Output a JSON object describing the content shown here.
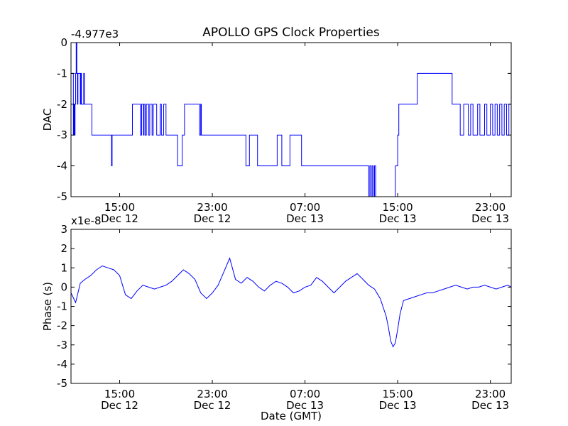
{
  "figure": {
    "title": "APOLLO GPS Clock Properties",
    "xlabel": "Date (GMT)"
  },
  "chart_data": [
    {
      "type": "line",
      "ylabel": "DAC",
      "offset_label": "-4.977e3",
      "x_unit": "hours",
      "xlim": [
        10.8,
        48.8
      ],
      "ylim": [
        -5,
        0
      ],
      "yticks": [
        0,
        -1,
        -2,
        -3,
        -4,
        -5
      ],
      "ytick_labels": [
        "0",
        "-1",
        "-2",
        "-3",
        "-4",
        "-5"
      ],
      "xticks": [
        15,
        23,
        31,
        39,
        47
      ],
      "xtick_labels": [
        [
          "15:00",
          "Dec 12"
        ],
        [
          "23:00",
          "Dec 12"
        ],
        [
          "07:00",
          "Dec 13"
        ],
        [
          "15:00",
          "Dec 13"
        ],
        [
          "23:00",
          "Dec 13"
        ]
      ],
      "color": "#0000ff",
      "step": true,
      "series": [
        {
          "x": [
            10.8,
            11.0,
            11.05,
            11.1,
            11.15,
            11.2,
            11.25,
            11.3,
            11.35,
            11.4,
            11.6,
            11.65,
            11.7,
            11.72,
            11.9,
            11.95,
            12.0,
            12.05,
            12.1,
            12.15,
            12.2,
            12.3,
            12.35,
            12.6,
            12.65,
            12.9,
            14.3,
            14.35,
            14.4,
            16.1,
            16.8,
            16.9,
            17.05,
            17.1,
            17.2,
            17.3,
            17.5,
            17.6,
            17.8,
            17.9,
            18.2,
            18.5,
            18.6,
            18.8,
            19.0,
            19.3,
            19.5,
            19.7,
            19.9,
            20.0,
            20.4,
            20.6,
            21.9,
            22.0,
            22.05,
            22.1,
            23.0,
            23.3,
            23.5,
            23.8,
            24.1,
            24.3,
            25.9,
            26.2,
            26.9,
            27.3,
            28.3,
            28.6,
            28.7,
            29.0,
            29.5,
            29.7,
            30.7,
            31.4,
            36.5,
            36.6,
            36.7,
            36.8,
            36.9,
            37.0,
            37.1,
            37.3,
            38.8,
            39.0,
            39.1,
            40.5,
            40.7,
            43.7,
            44.4,
            44.7,
            45.1,
            45.3,
            45.5,
            45.9,
            46.1,
            46.5,
            46.7,
            47.0,
            47.2,
            47.4,
            47.6,
            47.8,
            48.0,
            48.2,
            48.4,
            48.6
          ],
          "y": [
            -1,
            -3,
            -2,
            -3,
            -2,
            -1,
            0,
            -1,
            -2,
            -1,
            -2,
            -1,
            -2,
            -2,
            -1,
            -2,
            -2,
            -2,
            -2,
            -2,
            -2,
            -2,
            -2,
            -3,
            -3,
            -3,
            -4,
            -3,
            -3,
            -2,
            -3,
            -2,
            -3,
            -2,
            -3,
            -2,
            -3,
            -2,
            -3,
            -2,
            -3,
            -2,
            -3,
            -2,
            -3,
            -3,
            -3,
            -3,
            -3,
            -4,
            -3,
            -2,
            -3,
            -2,
            -3,
            -3,
            -3,
            -3,
            -3,
            -3,
            -3,
            -3,
            -4,
            -3,
            -4,
            -4,
            -4,
            -3,
            -3,
            -4,
            -4,
            -3,
            -4,
            -4,
            -5,
            -4,
            -5,
            -4,
            -5,
            -4,
            -5,
            -5,
            -4,
            -3,
            -2,
            -2,
            -1,
            -2,
            -3,
            -2,
            -3,
            -2,
            -3,
            -2,
            -3,
            -2,
            -3,
            -2,
            -3,
            -2,
            -3,
            -2,
            -3,
            -2,
            -3,
            -2
          ]
        }
      ]
    },
    {
      "type": "line",
      "ylabel": "Phase (s)",
      "offset_label": "x1e-8",
      "x_unit": "hours",
      "xlim": [
        10.8,
        48.8
      ],
      "ylim": [
        -5,
        3
      ],
      "yticks": [
        3,
        2,
        1,
        0,
        -1,
        -2,
        -3,
        -4,
        -5
      ],
      "ytick_labels": [
        "3",
        "2",
        "1",
        "0",
        "-1",
        "-2",
        "-3",
        "-4",
        "-5"
      ],
      "xticks": [
        15,
        23,
        31,
        39,
        47
      ],
      "xtick_labels": [
        [
          "15:00",
          "Dec 12"
        ],
        [
          "23:00",
          "Dec 12"
        ],
        [
          "07:00",
          "Dec 13"
        ],
        [
          "15:00",
          "Dec 13"
        ],
        [
          "23:00",
          "Dec 13"
        ]
      ],
      "color": "#0000ff",
      "series": [
        {
          "x": [
            10.8,
            11.2,
            11.6,
            12.0,
            12.5,
            13.0,
            13.5,
            14.0,
            14.5,
            15.0,
            15.5,
            16.0,
            16.5,
            17.0,
            17.5,
            18.0,
            18.5,
            19.0,
            19.5,
            20.0,
            20.5,
            21.0,
            21.5,
            22.0,
            22.5,
            23.0,
            23.5,
            24.0,
            24.5,
            25.0,
            25.5,
            26.0,
            26.5,
            27.0,
            27.5,
            28.0,
            28.5,
            29.0,
            29.5,
            30.0,
            30.5,
            31.0,
            31.5,
            32.0,
            32.5,
            33.0,
            33.5,
            34.0,
            34.5,
            35.0,
            35.5,
            36.0,
            36.5,
            37.0,
            37.5,
            38.0,
            38.2,
            38.4,
            38.6,
            38.8,
            39.0,
            39.2,
            39.5,
            40.0,
            40.5,
            41.0,
            41.5,
            42.0,
            42.5,
            43.0,
            43.5,
            44.0,
            44.5,
            45.0,
            45.5,
            46.0,
            46.5,
            47.0,
            47.5,
            48.0,
            48.5,
            48.8
          ],
          "y": [
            -0.3,
            -0.8,
            0.2,
            0.4,
            0.6,
            0.9,
            1.1,
            1.0,
            0.9,
            0.6,
            -0.4,
            -0.6,
            -0.2,
            0.1,
            0.0,
            -0.1,
            0.0,
            0.1,
            0.3,
            0.6,
            0.9,
            0.7,
            0.4,
            -0.3,
            -0.6,
            -0.3,
            0.1,
            0.8,
            1.5,
            0.4,
            0.2,
            0.5,
            0.3,
            0.0,
            -0.2,
            0.1,
            0.3,
            0.2,
            0.0,
            -0.3,
            -0.2,
            0.0,
            0.1,
            0.5,
            0.3,
            0.0,
            -0.3,
            0.0,
            0.3,
            0.5,
            0.7,
            0.4,
            0.1,
            -0.1,
            -0.6,
            -1.5,
            -2.1,
            -2.8,
            -3.1,
            -2.9,
            -2.2,
            -1.4,
            -0.7,
            -0.6,
            -0.5,
            -0.4,
            -0.3,
            -0.3,
            -0.2,
            -0.1,
            0.0,
            0.1,
            0.0,
            -0.1,
            0.0,
            0.0,
            0.1,
            0.0,
            -0.1,
            0.0,
            0.1,
            0.0
          ]
        }
      ]
    }
  ]
}
